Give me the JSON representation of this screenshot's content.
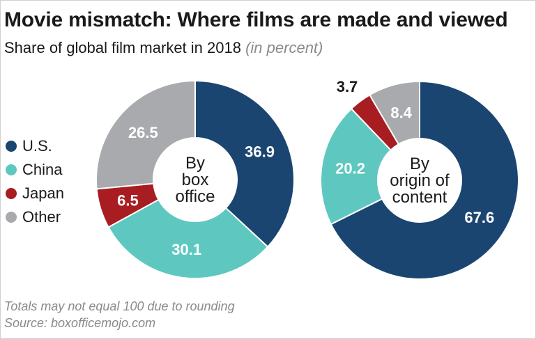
{
  "title": "Movie mismatch: Where films are made and viewed",
  "subtitle": "Share of global film market in 2018",
  "subtitle_unit": "(in percent)",
  "legend": [
    {
      "label": "U.S.",
      "color": "#1b4571"
    },
    {
      "label": "China",
      "color": "#5ec8c0"
    },
    {
      "label": "Japan",
      "color": "#a81d22"
    },
    {
      "label": "Other",
      "color": "#a9aaad"
    }
  ],
  "chart_data": [
    {
      "type": "pie",
      "title": "By box office",
      "center_lines": [
        "By",
        "box",
        "office"
      ],
      "categories": [
        "U.S.",
        "China",
        "Japan",
        "Other"
      ],
      "values": [
        36.9,
        30.1,
        6.5,
        26.5
      ],
      "labels": [
        "36.9",
        "30.1",
        "6.5",
        "26.5"
      ],
      "colors": [
        "#1b4571",
        "#5ec8c0",
        "#a81d22",
        "#a9aaad"
      ],
      "label_colors": [
        "#ffffff",
        "#ffffff",
        "#ffffff",
        "#ffffff"
      ]
    },
    {
      "type": "pie",
      "title": "By origin of content",
      "center_lines": [
        "By",
        "origin of",
        "content"
      ],
      "categories": [
        "U.S.",
        "China",
        "Japan",
        "Other"
      ],
      "values": [
        67.6,
        20.2,
        3.7,
        8.4
      ],
      "labels": [
        "67.6",
        "20.2",
        "3.7",
        "8.4"
      ],
      "colors": [
        "#1b4571",
        "#5ec8c0",
        "#a81d22",
        "#a9aaad"
      ],
      "label_colors": [
        "#ffffff",
        "#ffffff",
        "#1a1a1a",
        "#ffffff"
      ]
    }
  ],
  "footer": {
    "note": "Totals may not equal 100 due to rounding",
    "source": "Source: boxofficemojo.com"
  }
}
